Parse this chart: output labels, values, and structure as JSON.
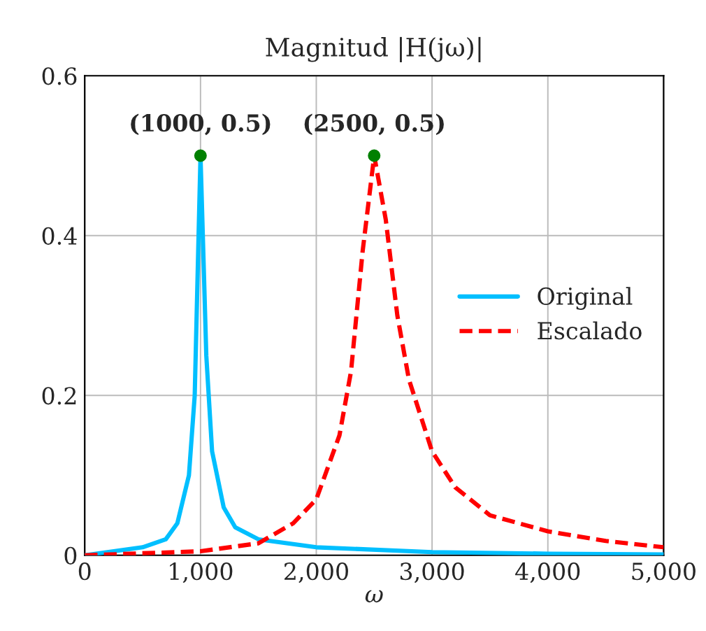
{
  "chart_data": {
    "type": "line",
    "title": "Magnitud |H(jω)|",
    "xlabel": "ω",
    "xlim": [
      0,
      5000
    ],
    "ylim": [
      0,
      0.6
    ],
    "xticks": [
      0,
      {
        "value": 1000,
        "label": "1,000"
      },
      {
        "value": 2000,
        "label": "2,000"
      },
      {
        "value": 3000,
        "label": "3,000"
      },
      {
        "value": 4000,
        "label": "4,000"
      },
      {
        "value": 5000,
        "label": "5,000"
      }
    ],
    "yticks": [
      0,
      0.2,
      0.4,
      0.6
    ],
    "grid": true,
    "legend": "right",
    "marker": "none",
    "series": [
      {
        "name": "Original",
        "color": "#00bfff",
        "line_style": "solid",
        "x": [
          0,
          500,
          700,
          800,
          900,
          950,
          980,
          1000,
          1020,
          1050,
          1100,
          1200,
          1300,
          1500,
          2000,
          3000,
          4000,
          5000
        ],
        "values": [
          0,
          0.01,
          0.02,
          0.04,
          0.1,
          0.2,
          0.38,
          0.5,
          0.4,
          0.25,
          0.13,
          0.06,
          0.035,
          0.02,
          0.01,
          0.004,
          0.002,
          0.001
        ]
      },
      {
        "name": "Escalado",
        "color": "#ff0000",
        "line_style": "dashed",
        "x": [
          0,
          1000,
          1500,
          1800,
          2000,
          2200,
          2300,
          2400,
          2500,
          2600,
          2700,
          2800,
          3000,
          3200,
          3500,
          4000,
          4500,
          5000
        ],
        "values": [
          0,
          0.005,
          0.015,
          0.04,
          0.07,
          0.15,
          0.23,
          0.38,
          0.5,
          0.42,
          0.3,
          0.22,
          0.13,
          0.085,
          0.05,
          0.03,
          0.018,
          0.01
        ]
      },
      {
        "type": "scatter",
        "color": "#008000",
        "marker": "circle",
        "x": [
          1000,
          2500
        ],
        "values": [
          0.5,
          0.5
        ]
      }
    ],
    "annotations": [
      {
        "text": "(1000, 0.5)",
        "x": 1000,
        "y": 0.5
      },
      {
        "text": "(2500, 0.5)",
        "x": 2500,
        "y": 0.5
      }
    ]
  }
}
